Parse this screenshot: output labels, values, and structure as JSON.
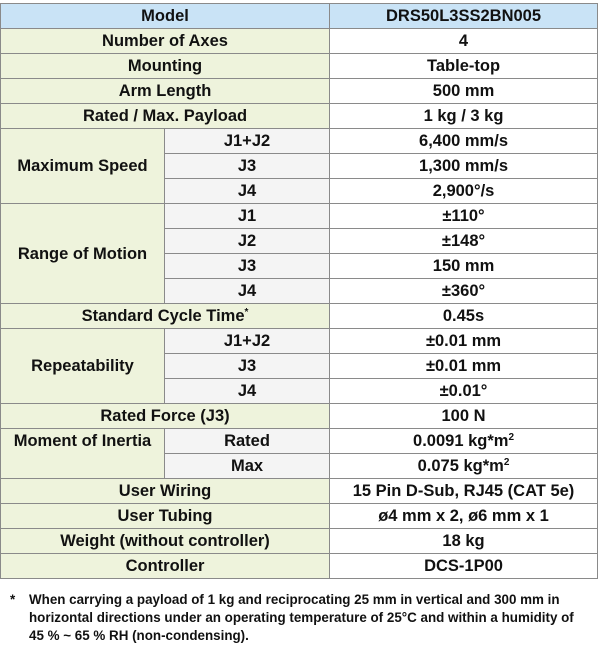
{
  "header": {
    "label": "Model",
    "value": "DRS50L3SS2BN005"
  },
  "rows": {
    "axes": {
      "label": "Number of Axes",
      "value": "4"
    },
    "mounting": {
      "label": "Mounting",
      "value": "Table-top"
    },
    "arm_length": {
      "label": "Arm Length",
      "value": "500 mm"
    },
    "payload": {
      "label": "Rated / Max. Payload",
      "value": "1 kg / 3 kg"
    },
    "max_speed": {
      "label": "Maximum Speed",
      "subs": [
        {
          "label": "J1+J2",
          "value": "6,400 mm/s"
        },
        {
          "label": "J3",
          "value": "1,300 mm/s"
        },
        {
          "label": "J4",
          "value": "2,900°/s"
        }
      ]
    },
    "range_of_motion": {
      "label": "Range of Motion",
      "subs": [
        {
          "label": "J1",
          "value": "±110°"
        },
        {
          "label": "J2",
          "value": "±148°"
        },
        {
          "label": "J3",
          "value": "150 mm"
        },
        {
          "label": "J4",
          "value": "±360°"
        }
      ]
    },
    "cycle_time": {
      "label": "Standard Cycle Time",
      "mark": "*",
      "value": "0.45s"
    },
    "repeatability": {
      "label": "Repeatability",
      "subs": [
        {
          "label": "J1+J2",
          "value": "±0.01 mm"
        },
        {
          "label": "J3",
          "value": "±0.01 mm"
        },
        {
          "label": "J4",
          "value": "±0.01°"
        }
      ]
    },
    "rated_force": {
      "label": "Rated Force (J3)",
      "value": "100 N"
    },
    "inertia": {
      "label": "Moment of Inertia",
      "subs": [
        {
          "label": "Rated",
          "value": "0.0091 kg*m",
          "exp": "2"
        },
        {
          "label": "Max",
          "value": "0.075 kg*m",
          "exp": "2"
        }
      ]
    },
    "user_wiring": {
      "label": "User Wiring",
      "value": "15 Pin D-Sub, RJ45 (CAT 5e)"
    },
    "user_tubing": {
      "label": "User Tubing",
      "value": "ø4 mm x 2, ø6 mm x 1"
    },
    "weight": {
      "label": "Weight (without controller)",
      "value": "18 kg"
    },
    "controller": {
      "label": "Controller",
      "value": "DCS-1P00"
    }
  },
  "footnote": {
    "mark": "*",
    "text": "When carrying a payload of 1 kg and reciprocating 25 mm in vertical and 300 mm in horizontal directions under an operating temperature of 25°C and within a humidity of 45 % ~ 65 % RH (non-condensing)."
  }
}
